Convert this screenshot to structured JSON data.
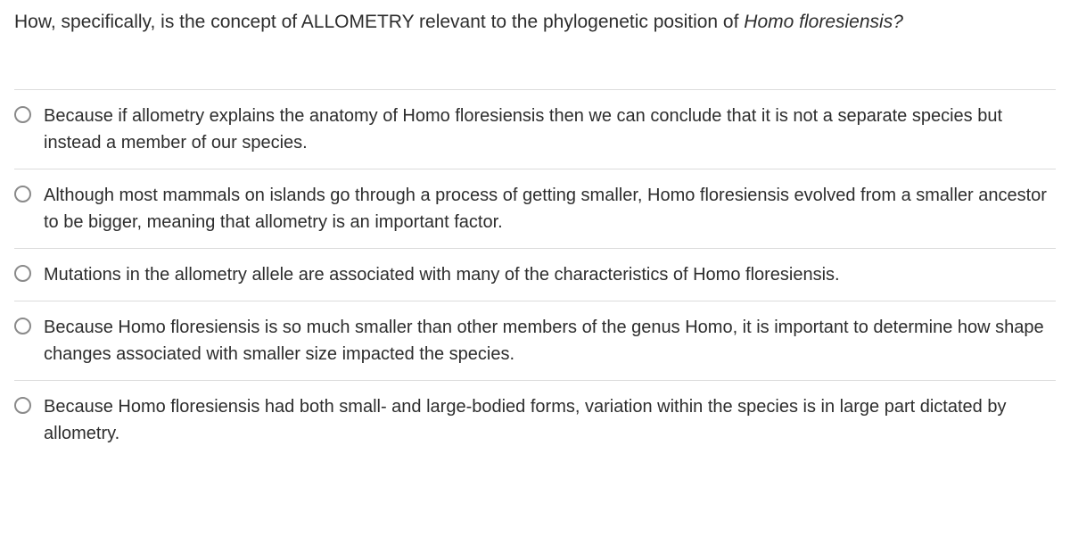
{
  "question": {
    "text_prefix": "How, specifically, is the concept of ALLOMETRY relevant to the phylogenetic position of ",
    "text_italic": "Homo floresiensis?",
    "text_suffix": ""
  },
  "options": [
    {
      "label": "Because if allometry explains the anatomy of Homo floresiensis then we can conclude that it is not a separate species but instead a member of our species."
    },
    {
      "label": "Although most mammals on islands go through a process of getting smaller, Homo floresiensis evolved from a smaller ancestor to be bigger, meaning that allometry is an important factor."
    },
    {
      "label": "Mutations in the allometry allele are associated with many of the characteristics of Homo floresiensis."
    },
    {
      "label": "Because Homo floresiensis is so much smaller than other members of the genus Homo, it is important to determine how shape changes associated with smaller size impacted the species."
    },
    {
      "label": "Because Homo floresiensis had both small- and large-bodied forms, variation within the species is in large part dictated by allometry."
    }
  ],
  "colors": {
    "text": "#2d2d2d",
    "border": "#dcdcdc",
    "radio_border": "#8a8a8a",
    "background": "#ffffff"
  }
}
